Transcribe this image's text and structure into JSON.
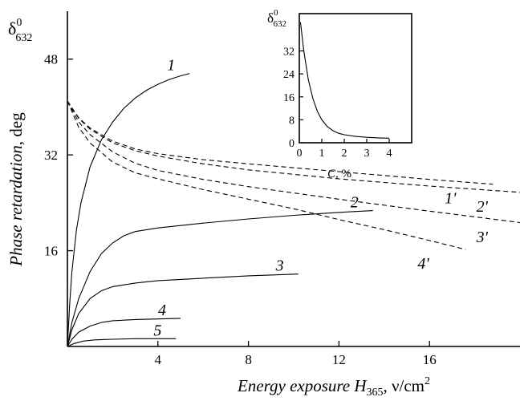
{
  "chart_data": {
    "type": "line",
    "xlabel": {
      "main": "Energy exposure ",
      "var": "H",
      "sub": "365",
      "unit": ", ν/cm",
      "sup": "2"
    },
    "ylabel": {
      "main": "Phase retardation",
      "unit": ", deg"
    },
    "y_symbol": {
      "base": "δ",
      "sup": "0",
      "sub": "632"
    },
    "xlim": [
      0,
      20
    ],
    "ylim": [
      0,
      56
    ],
    "xticks": [
      4,
      8,
      12,
      16
    ],
    "yticks": [
      16,
      32,
      48
    ],
    "series": [
      {
        "name": "1",
        "style": "solid",
        "x": [
          0,
          0.1,
          0.2,
          0.4,
          0.6,
          1.0,
          1.5,
          2.0,
          2.5,
          3.0,
          3.5,
          4.0,
          4.5,
          5.0,
          5.4
        ],
        "y": [
          0,
          7,
          12.5,
          19.5,
          24,
          30,
          34.5,
          37.5,
          39.8,
          41.5,
          42.8,
          43.8,
          44.6,
          45.2,
          45.6
        ]
      },
      {
        "name": "2",
        "style": "solid",
        "x": [
          0,
          0.2,
          0.5,
          1.0,
          1.5,
          2.0,
          2.5,
          3.0,
          4.0,
          6.0,
          8.0,
          10.0,
          12.0,
          13.5
        ],
        "y": [
          0,
          4,
          8,
          12.5,
          15.5,
          17.3,
          18.5,
          19.2,
          19.8,
          20.6,
          21.3,
          21.9,
          22.4,
          22.7
        ]
      },
      {
        "name": "3",
        "style": "solid",
        "x": [
          0,
          0.2,
          0.5,
          1.0,
          1.5,
          2.0,
          3.0,
          4.0,
          6.0,
          8.0,
          10.2
        ],
        "y": [
          0,
          2.8,
          5.5,
          8,
          9.3,
          10,
          10.6,
          11,
          11.4,
          11.8,
          12.1
        ]
      },
      {
        "name": "4",
        "style": "solid",
        "x": [
          0,
          0.2,
          0.5,
          1.0,
          1.5,
          2.0,
          3.0,
          4.0,
          5.0
        ],
        "y": [
          0,
          1.2,
          2.4,
          3.4,
          4,
          4.3,
          4.5,
          4.6,
          4.7
        ]
      },
      {
        "name": "5",
        "style": "solid",
        "x": [
          0,
          0.3,
          0.7,
          1.2,
          2.0,
          3.0,
          4.0,
          4.8
        ],
        "y": [
          0,
          0.5,
          0.9,
          1.1,
          1.2,
          1.3,
          1.3,
          1.3
        ]
      },
      {
        "name": "1'",
        "style": "dashed",
        "x": [
          0,
          0.5,
          1.0,
          2.0,
          3.0,
          4.0,
          6.0,
          8.0,
          12.0,
          16.0,
          18.8
        ],
        "y": [
          41,
          38.2,
          36.5,
          34.3,
          33,
          32.2,
          31.2,
          30.5,
          29.2,
          27.9,
          27.1
        ]
      },
      {
        "name": "2'",
        "style": "dashed",
        "x": [
          0,
          0.5,
          1.0,
          2.0,
          3.0,
          4.0,
          6.0,
          8.0,
          12.0,
          16.0,
          20.2
        ],
        "y": [
          41,
          38.1,
          36.3,
          34,
          32.7,
          31.8,
          30.5,
          29.5,
          28,
          26.8,
          25.7
        ]
      },
      {
        "name": "3'",
        "style": "dashed",
        "x": [
          0,
          0.5,
          1.0,
          2.0,
          3.0,
          4.0,
          6.0,
          8.0,
          12.0,
          16.0,
          20.2
        ],
        "y": [
          41,
          37.5,
          35.4,
          32.5,
          30.6,
          29.4,
          27.9,
          26.7,
          24.6,
          22.6,
          20.6
        ]
      },
      {
        "name": "4'",
        "style": "dashed",
        "x": [
          0,
          0.5,
          1.0,
          2.0,
          3.0,
          4.0,
          6.0,
          8.0,
          10.0,
          12.0,
          14.0,
          16.0,
          17.6
        ],
        "y": [
          41,
          36.6,
          34,
          30.8,
          29,
          28,
          26.2,
          24.6,
          23,
          21.2,
          19.5,
          17.7,
          16.2
        ]
      }
    ],
    "inset": {
      "type": "line",
      "xlabel": {
        "var": "C",
        "unit": ", %"
      },
      "xlim": [
        0,
        5
      ],
      "ylim": [
        0,
        45
      ],
      "xticks": [
        0,
        1,
        2,
        3,
        4
      ],
      "yticks": [
        0,
        8,
        16,
        24,
        32
      ],
      "series": [
        {
          "x": [
            0.05,
            0.2,
            0.4,
            0.6,
            0.8,
            1.0,
            1.25,
            1.5,
            1.75,
            2.0,
            2.5,
            3.0,
            3.5,
            4.0
          ],
          "y": [
            42,
            32,
            22,
            15.5,
            11,
            8,
            5.6,
            4.2,
            3.3,
            2.8,
            2.2,
            1.9,
            1.7,
            1.6
          ]
        }
      ]
    }
  }
}
